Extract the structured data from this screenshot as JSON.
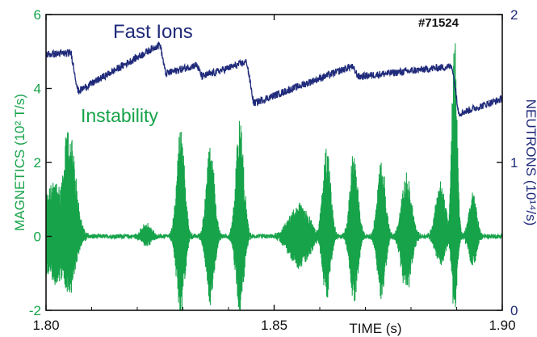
{
  "chart_data": {
    "type": "line",
    "shot_label": "#71524",
    "xlabel": "TIME (s)",
    "xlim": [
      1.8,
      1.9
    ],
    "x_ticks": [
      {
        "value": 1.8,
        "label": "1.80"
      },
      {
        "value": 1.85,
        "label": "1.85"
      },
      {
        "value": 1.9,
        "label": "1.90"
      }
    ],
    "left_axis": {
      "label": "MAGNETICS (10² T/s)",
      "lim": [
        -2,
        6
      ],
      "ticks": [
        {
          "value": -2,
          "label": "-2"
        },
        {
          "value": 0,
          "label": "0"
        },
        {
          "value": 2,
          "label": "2"
        },
        {
          "value": 4,
          "label": "4"
        },
        {
          "value": 6,
          "label": "6"
        }
      ],
      "color": "#16a34a"
    },
    "right_axis": {
      "label": "NEUTRONS (10¹⁴/s)",
      "lim": [
        0,
        2
      ],
      "ticks": [
        {
          "value": 0,
          "label": "0"
        },
        {
          "value": 1,
          "label": "1"
        },
        {
          "value": 2,
          "label": "2"
        }
      ],
      "color": "#1f2a7a"
    },
    "series": [
      {
        "name": "Fast Ions",
        "axis": "right",
        "color": "#1f2a7a",
        "x": [
          1.8,
          1.8055,
          1.807,
          1.825,
          1.8262,
          1.833,
          1.8342,
          1.844,
          1.8455,
          1.867,
          1.8685,
          1.889,
          1.8905,
          1.9
        ],
        "y": [
          1.73,
          1.74,
          1.48,
          1.8,
          1.6,
          1.66,
          1.58,
          1.68,
          1.4,
          1.65,
          1.58,
          1.65,
          1.33,
          1.43
        ]
      },
      {
        "name": "Instability",
        "axis": "left",
        "color": "#16a34a",
        "bursts": [
          {
            "t": 1.802,
            "width": 0.004,
            "amp_pos": 1.5,
            "amp_neg": 1.3
          },
          {
            "t": 1.805,
            "width": 0.002,
            "amp_pos": 3.0,
            "amp_neg": 1.6
          },
          {
            "t": 1.822,
            "width": 0.0015,
            "amp_pos": 0.35,
            "amp_neg": 0.25
          },
          {
            "t": 1.8295,
            "width": 0.0012,
            "amp_pos": 3.1,
            "amp_neg": 2.2
          },
          {
            "t": 1.836,
            "width": 0.0012,
            "amp_pos": 2.6,
            "amp_neg": 1.9
          },
          {
            "t": 1.8425,
            "width": 0.0012,
            "amp_pos": 3.2,
            "amp_neg": 2.1
          },
          {
            "t": 1.8555,
            "width": 0.003,
            "amp_pos": 0.9,
            "amp_neg": 0.9
          },
          {
            "t": 1.8615,
            "width": 0.0012,
            "amp_pos": 2.5,
            "amp_neg": 1.7
          },
          {
            "t": 1.8675,
            "width": 0.0012,
            "amp_pos": 2.4,
            "amp_neg": 1.8
          },
          {
            "t": 1.8735,
            "width": 0.0012,
            "amp_pos": 2.2,
            "amp_neg": 1.7
          },
          {
            "t": 1.879,
            "width": 0.0015,
            "amp_pos": 1.7,
            "amp_neg": 1.6
          },
          {
            "t": 1.8865,
            "width": 0.0015,
            "amp_pos": 1.5,
            "amp_neg": 0.8
          },
          {
            "t": 1.8895,
            "width": 0.0008,
            "amp_pos": 5.7,
            "amp_neg": 2.2
          },
          {
            "t": 1.8935,
            "width": 0.0012,
            "amp_pos": 1.2,
            "amp_neg": 0.8
          }
        ],
        "baseline_noise": 0.06
      }
    ],
    "grid": false
  }
}
